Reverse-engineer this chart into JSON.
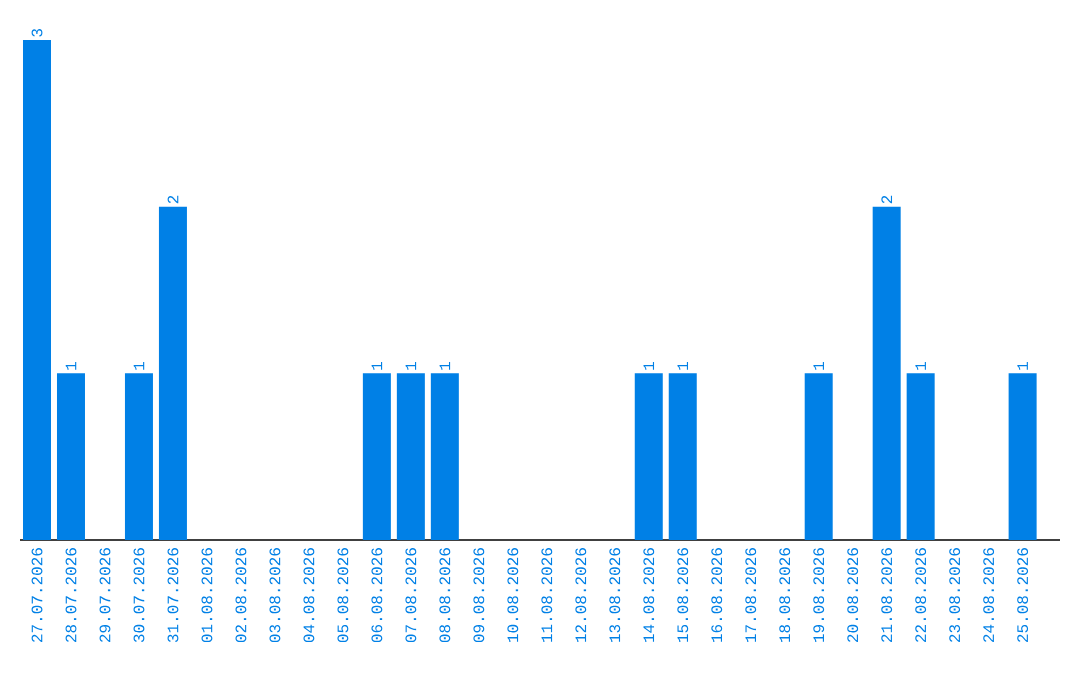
{
  "chart_data": {
    "type": "bar",
    "categories": [
      "27.07.2026",
      "28.07.2026",
      "29.07.2026",
      "30.07.2026",
      "31.07.2026",
      "01.08.2026",
      "02.08.2026",
      "03.08.2026",
      "04.08.2026",
      "05.08.2026",
      "06.08.2026",
      "07.08.2026",
      "08.08.2026",
      "09.08.2026",
      "10.08.2026",
      "11.08.2026",
      "12.08.2026",
      "13.08.2026",
      "14.08.2026",
      "15.08.2026",
      "16.08.2026",
      "17.08.2026",
      "18.08.2026",
      "19.08.2026",
      "20.08.2026",
      "21.08.2026",
      "22.08.2026",
      "23.08.2026",
      "24.08.2026",
      "25.08.2026"
    ],
    "values": [
      3,
      1,
      0,
      1,
      2,
      0,
      0,
      0,
      0,
      0,
      1,
      1,
      1,
      0,
      0,
      0,
      0,
      0,
      1,
      1,
      0,
      0,
      0,
      1,
      0,
      2,
      1,
      0,
      0,
      1
    ],
    "value_labels": [
      "3",
      "1",
      null,
      "1",
      "2",
      null,
      null,
      null,
      null,
      null,
      "1",
      "1",
      "1",
      null,
      null,
      null,
      null,
      null,
      "1",
      "1",
      null,
      null,
      null,
      "1",
      null,
      "2",
      "1",
      null,
      null,
      "1"
    ],
    "color": "#0080e6"
  }
}
